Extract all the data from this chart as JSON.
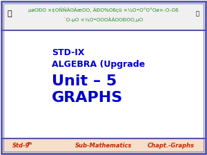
{
  "bg_color": "#ffffff",
  "outer_border_color": "#5555aa",
  "inner_border_color": "#8888bb",
  "header_bg": "#f0f0f0",
  "header_text_color": "#228B22",
  "footer_bg": "#f5dfc8",
  "footer_border_color": "#5555aa",
  "footer_text_color": "#cc2200",
  "footer_left": "Std-9",
  "footer_left_sup": "th",
  "footer_mid": "Sub-Mathematics",
  "footer_right": "Chapt.-Graphs",
  "line1": "STD-IX",
  "line2": "ALGEBRA (Upgrade",
  "line3": "Unit – 5",
  "line4": "GRAPHS",
  "main_text_color": "#0000cc",
  "line1_size": 9,
  "line2_size": 9,
  "line3_size": 16,
  "line4_size": 16,
  "footer_fontsize": 6
}
